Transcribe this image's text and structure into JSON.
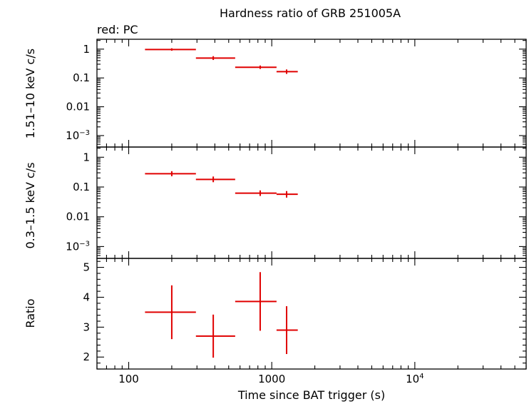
{
  "chart_data": {
    "type": "scatter",
    "title": "Hardness ratio of GRB 251005A",
    "subtitle": "red: PC",
    "xlabel": "Time since BAT trigger (s)",
    "xscale": "log",
    "xlim": [
      60,
      60000
    ],
    "x_ticks": [
      {
        "label": "100",
        "value": 100,
        "sup": ""
      },
      {
        "label": "1000",
        "value": 1000,
        "sup": ""
      },
      {
        "label": "10",
        "value": 10000,
        "sup": "4"
      }
    ],
    "series_color": "#e00000",
    "panels": [
      {
        "ylabel": "1.51–10 keV c/s",
        "yscale": "log",
        "ylim": [
          0.0004,
          2.2
        ],
        "y_ticks": [
          {
            "label": "1",
            "value": 1,
            "sup": ""
          },
          {
            "label": "0.1",
            "value": 0.1,
            "sup": ""
          },
          {
            "label": "0.01",
            "value": 0.01,
            "sup": ""
          },
          {
            "label": "10",
            "value": 0.001,
            "sup": "−3"
          }
        ],
        "points": [
          {
            "x": 200,
            "x_lo": 130,
            "x_hi": 295,
            "y": 0.97,
            "y_lo": 0.88,
            "y_hi": 1.07
          },
          {
            "x": 390,
            "x_lo": 295,
            "x_hi": 555,
            "y": 0.49,
            "y_lo": 0.42,
            "y_hi": 0.57
          },
          {
            "x": 830,
            "x_lo": 555,
            "x_hi": 1080,
            "y": 0.235,
            "y_lo": 0.205,
            "y_hi": 0.27
          },
          {
            "x": 1270,
            "x_lo": 1080,
            "x_hi": 1520,
            "y": 0.165,
            "y_lo": 0.138,
            "y_hi": 0.197
          }
        ]
      },
      {
        "ylabel": "0.3–1.5 keV c/s",
        "yscale": "log",
        "ylim": [
          0.0004,
          2.2
        ],
        "y_ticks": [
          {
            "label": "1",
            "value": 1,
            "sup": ""
          },
          {
            "label": "0.1",
            "value": 0.1,
            "sup": ""
          },
          {
            "label": "0.01",
            "value": 0.01,
            "sup": ""
          },
          {
            "label": "10",
            "value": 0.001,
            "sup": "−3"
          }
        ],
        "points": [
          {
            "x": 200,
            "x_lo": 130,
            "x_hi": 295,
            "y": 0.28,
            "y_lo": 0.23,
            "y_hi": 0.34
          },
          {
            "x": 390,
            "x_lo": 295,
            "x_hi": 555,
            "y": 0.18,
            "y_lo": 0.145,
            "y_hi": 0.225
          },
          {
            "x": 830,
            "x_lo": 555,
            "x_hi": 1080,
            "y": 0.062,
            "y_lo": 0.05,
            "y_hi": 0.077
          },
          {
            "x": 1270,
            "x_lo": 1080,
            "x_hi": 1520,
            "y": 0.057,
            "y_lo": 0.044,
            "y_hi": 0.073
          }
        ]
      },
      {
        "ylabel": "Ratio",
        "yscale": "linear",
        "ylim": [
          1.6,
          5.3
        ],
        "y_ticks": [
          {
            "label": "2",
            "value": 2,
            "sup": ""
          },
          {
            "label": "3",
            "value": 3,
            "sup": ""
          },
          {
            "label": "4",
            "value": 4,
            "sup": ""
          },
          {
            "label": "5",
            "value": 5,
            "sup": ""
          }
        ],
        "points": [
          {
            "x": 200,
            "x_lo": 130,
            "x_hi": 295,
            "y": 3.5,
            "y_lo": 2.6,
            "y_hi": 4.4
          },
          {
            "x": 390,
            "x_lo": 295,
            "x_hi": 555,
            "y": 2.7,
            "y_lo": 1.98,
            "y_hi": 3.42
          },
          {
            "x": 830,
            "x_lo": 555,
            "x_hi": 1080,
            "y": 3.86,
            "y_lo": 2.88,
            "y_hi": 4.84
          },
          {
            "x": 1270,
            "x_lo": 1080,
            "x_hi": 1520,
            "y": 2.9,
            "y_lo": 2.1,
            "y_hi": 3.7
          }
        ]
      }
    ]
  }
}
